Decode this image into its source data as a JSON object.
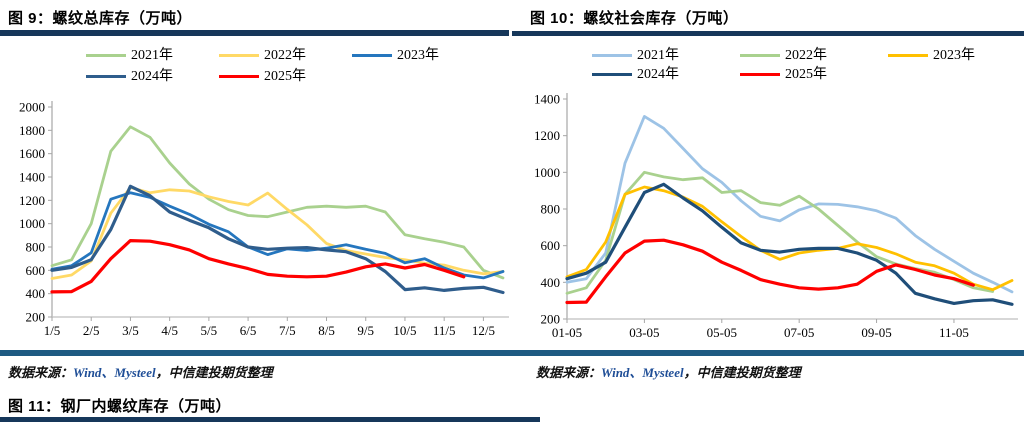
{
  "figure9_title": "图 9：螺纹总库存（万吨）",
  "figure10_title": "图 10：螺纹社会库存（万吨）",
  "figure11_title": "图 11：钢厂内螺纹库存（万吨）",
  "source_note": {
    "prefix": "数据来源：",
    "latin": "Wind、Mysteel",
    "suffix": "，中信建投期货整理"
  },
  "chart_data": [
    {
      "type": "line",
      "title": "图 9：螺纹总库存（万吨）",
      "ylabel": "万吨",
      "ylim": [
        200,
        2000
      ],
      "ystep": 200,
      "grid": false,
      "legend_position": "top",
      "n_points": 24,
      "x_periods": [
        "1/5",
        "1/20",
        "2/5",
        "2/20",
        "3/5",
        "3/20",
        "4/5",
        "4/20",
        "5/5",
        "5/20",
        "6/5",
        "6/20",
        "7/5",
        "7/20",
        "8/5",
        "8/20",
        "9/5",
        "9/20",
        "10/5",
        "10/20",
        "11/5",
        "11/20",
        "12/5",
        "12/20"
      ],
      "xtick_labels": [
        "1/5",
        "2/5",
        "3/5",
        "4/5",
        "5/5",
        "6/5",
        "7/5",
        "8/5",
        "9/5",
        "10/5",
        "11/5",
        "12/5"
      ],
      "xtick_indices": [
        0,
        2,
        4,
        6,
        8,
        10,
        12,
        14,
        16,
        18,
        20,
        22
      ],
      "series": [
        {
          "name": "2021年",
          "color": "#a9d18e",
          "width": 2.8,
          "values": [
            640,
            690,
            1000,
            1620,
            1830,
            1740,
            1520,
            1340,
            1210,
            1120,
            1070,
            1060,
            1100,
            1140,
            1150,
            1140,
            1150,
            1100,
            905,
            870,
            840,
            800,
            600,
            535
          ]
        },
        {
          "name": "2022年",
          "color": "#ffd966",
          "width": 2.8,
          "values": [
            530,
            560,
            680,
            1090,
            1310,
            1265,
            1290,
            1280,
            1230,
            1190,
            1160,
            1262,
            1122,
            990,
            830,
            770,
            740,
            710,
            690,
            660,
            645,
            600,
            570,
            590
          ]
        },
        {
          "name": "2023年",
          "color": "#2576be",
          "width": 2.8,
          "values": [
            610,
            640,
            750,
            1210,
            1265,
            1225,
            1150,
            1080,
            995,
            930,
            800,
            735,
            785,
            770,
            790,
            820,
            780,
            745,
            665,
            700,
            620,
            560,
            535,
            590
          ]
        },
        {
          "name": "2024年",
          "color": "#2f5d8c",
          "width": 3.2,
          "values": [
            600,
            625,
            690,
            950,
            1320,
            1240,
            1100,
            1030,
            965,
            870,
            800,
            780,
            790,
            795,
            775,
            760,
            700,
            590,
            435,
            450,
            428,
            445,
            455,
            410
          ]
        },
        {
          "name": "2025年",
          "color": "#ff0000",
          "width": 3.2,
          "values": [
            415,
            418,
            505,
            700,
            855,
            850,
            820,
            775,
            700,
            655,
            615,
            565,
            550,
            545,
            550,
            585,
            630,
            655,
            620,
            650,
            600,
            545,
            null,
            null
          ]
        }
      ]
    },
    {
      "type": "line",
      "title": "图 10：螺纹社会库存（万吨）",
      "ylabel": "万吨",
      "ylim": [
        200,
        1400
      ],
      "ystep": 200,
      "grid": false,
      "legend_position": "top",
      "n_points": 24,
      "x_periods": [
        "01-05",
        "01-20",
        "02-05",
        "02-20",
        "03-05",
        "03-20",
        "04-05",
        "04-20",
        "05-05",
        "05-20",
        "06-05",
        "06-20",
        "07-05",
        "07-20",
        "08-05",
        "08-20",
        "09-05",
        "09-20",
        "10-05",
        "10-20",
        "11-05",
        "11-20",
        "12-05",
        "12-20"
      ],
      "xtick_labels": [
        "01-05",
        "03-05",
        "05-05",
        "07-05",
        "09-05",
        "11-05"
      ],
      "xtick_indices": [
        0,
        4,
        8,
        12,
        16,
        20
      ],
      "series": [
        {
          "name": "2021年",
          "color": "#9dc3e6",
          "width": 2.8,
          "values": [
            400,
            420,
            560,
            1050,
            1305,
            1240,
            1130,
            1020,
            945,
            845,
            760,
            735,
            795,
            828,
            825,
            812,
            790,
            750,
            655,
            580,
            515,
            450,
            400,
            348
          ]
        },
        {
          "name": "2022年",
          "color": "#a9d18e",
          "width": 2.8,
          "values": [
            340,
            370,
            520,
            880,
            1000,
            975,
            960,
            970,
            890,
            900,
            835,
            820,
            870,
            800,
            710,
            620,
            540,
            500,
            475,
            455,
            415,
            370,
            350,
            null
          ]
        },
        {
          "name": "2023年",
          "color": "#ffc000",
          "width": 2.8,
          "values": [
            430,
            470,
            620,
            880,
            920,
            900,
            865,
            815,
            730,
            650,
            575,
            525,
            560,
            575,
            585,
            610,
            590,
            555,
            510,
            490,
            450,
            390,
            360,
            410
          ]
        },
        {
          "name": "2024年",
          "color": "#1f4e79",
          "width": 3.2,
          "values": [
            420,
            450,
            510,
            700,
            890,
            935,
            860,
            790,
            700,
            615,
            575,
            565,
            580,
            585,
            585,
            560,
            520,
            450,
            340,
            310,
            285,
            300,
            305,
            280
          ]
        },
        {
          "name": "2025年",
          "color": "#ff0000",
          "width": 3.2,
          "values": [
            290,
            292,
            430,
            560,
            625,
            630,
            605,
            570,
            510,
            465,
            415,
            390,
            370,
            363,
            370,
            390,
            460,
            495,
            470,
            440,
            420,
            385,
            null,
            null
          ]
        }
      ]
    }
  ]
}
